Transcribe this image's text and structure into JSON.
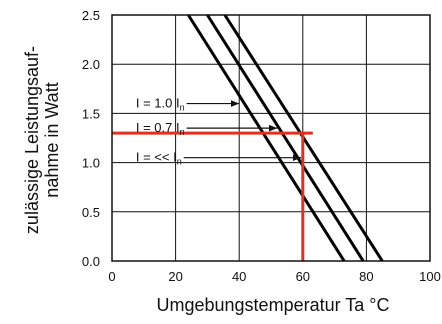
{
  "chart_data": {
    "type": "line",
    "xlabel": "Umgebungstemperatur Ta °C",
    "ylabel_lines": [
      "zulässige Leistungsauf-",
      "nahme in Watt"
    ],
    "xlim": [
      0,
      100
    ],
    "ylim": [
      0,
      2.5
    ],
    "x_ticks": [
      "0",
      "20",
      "40",
      "60",
      "80",
      "100"
    ],
    "y_ticks": [
      "0.0",
      "0.5",
      "1.0",
      "1.5",
      "2.0",
      "2.5"
    ],
    "grid": true,
    "series": [
      {
        "points": [
          [
            24,
            2.5
          ],
          [
            73,
            0
          ]
        ]
      },
      {
        "points": [
          [
            30,
            2.5
          ],
          [
            79,
            0
          ]
        ]
      },
      {
        "points": [
          [
            35.5,
            2.5
          ],
          [
            85,
            0
          ]
        ]
      }
    ],
    "annotations": [
      {
        "id": "i10",
        "text_main": "I = 1.0 I",
        "subscript": "n",
        "at": [
          7.5,
          1.6
        ],
        "arrow_to": [
          40,
          1.6
        ]
      },
      {
        "id": "i07",
        "text_main": "I = 0.7 I",
        "subscript": "n",
        "at": [
          7.5,
          1.35
        ],
        "arrow_to": [
          52,
          1.35
        ]
      },
      {
        "id": "ill",
        "text_main": "I = << I",
        "subscript": "n",
        "at": [
          7.5,
          1.05
        ],
        "arrow_to": [
          59.5,
          1.05
        ]
      }
    ],
    "reference": {
      "x": 60,
      "y": 1.3,
      "color": "#e03020"
    }
  }
}
